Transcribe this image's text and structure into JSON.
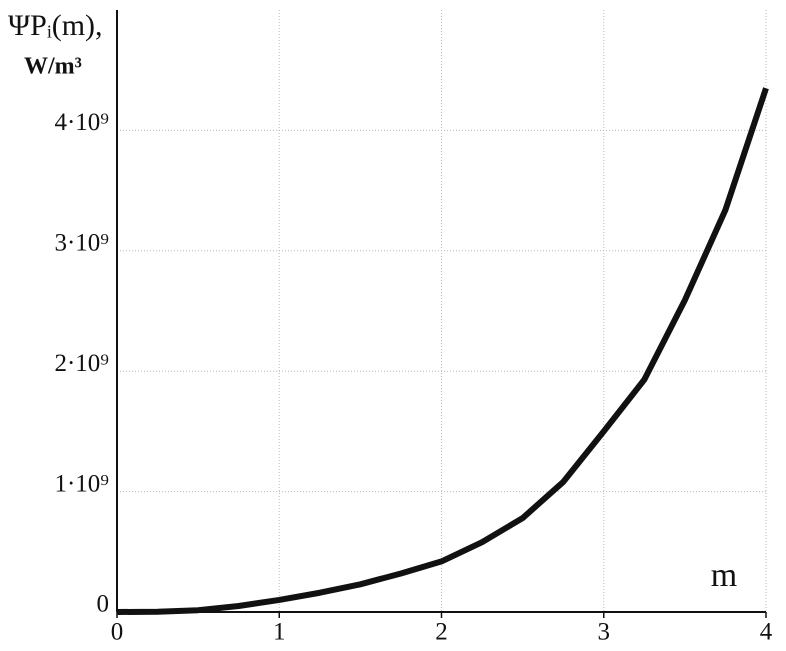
{
  "chart_data": {
    "type": "line",
    "y_label": "ΨPᵢ(m),",
    "y_unit": "W/m³",
    "x_label": "m",
    "x": [
      0,
      0.25,
      0.5,
      0.75,
      1,
      1.25,
      1.5,
      1.75,
      2,
      2.25,
      2.5,
      2.75,
      3,
      3.25,
      3.5,
      3.75,
      4
    ],
    "series": [
      {
        "color": "#111111",
        "values": [
          0,
          2000000,
          15000000,
          50000000,
          100000000,
          160000000,
          230000000,
          320000000,
          420000000,
          580000000,
          780000000,
          1080000000,
          1500000000,
          1930000000,
          2590000000,
          3340000000,
          4350000000
        ]
      }
    ],
    "xlim": [
      0,
      4
    ],
    "xticks": [
      0,
      1,
      2,
      3,
      4
    ],
    "ylim": [
      0,
      5000000000
    ],
    "yticks": [
      {
        "value": 0,
        "label": "0"
      },
      {
        "value": 1000000000,
        "label": "1·10⁹"
      },
      {
        "value": 2000000000,
        "label": "2·10⁹"
      },
      {
        "value": 3000000000,
        "label": "3·10⁹"
      },
      {
        "value": 4000000000,
        "label": "4·10⁹"
      }
    ],
    "grid": true
  }
}
